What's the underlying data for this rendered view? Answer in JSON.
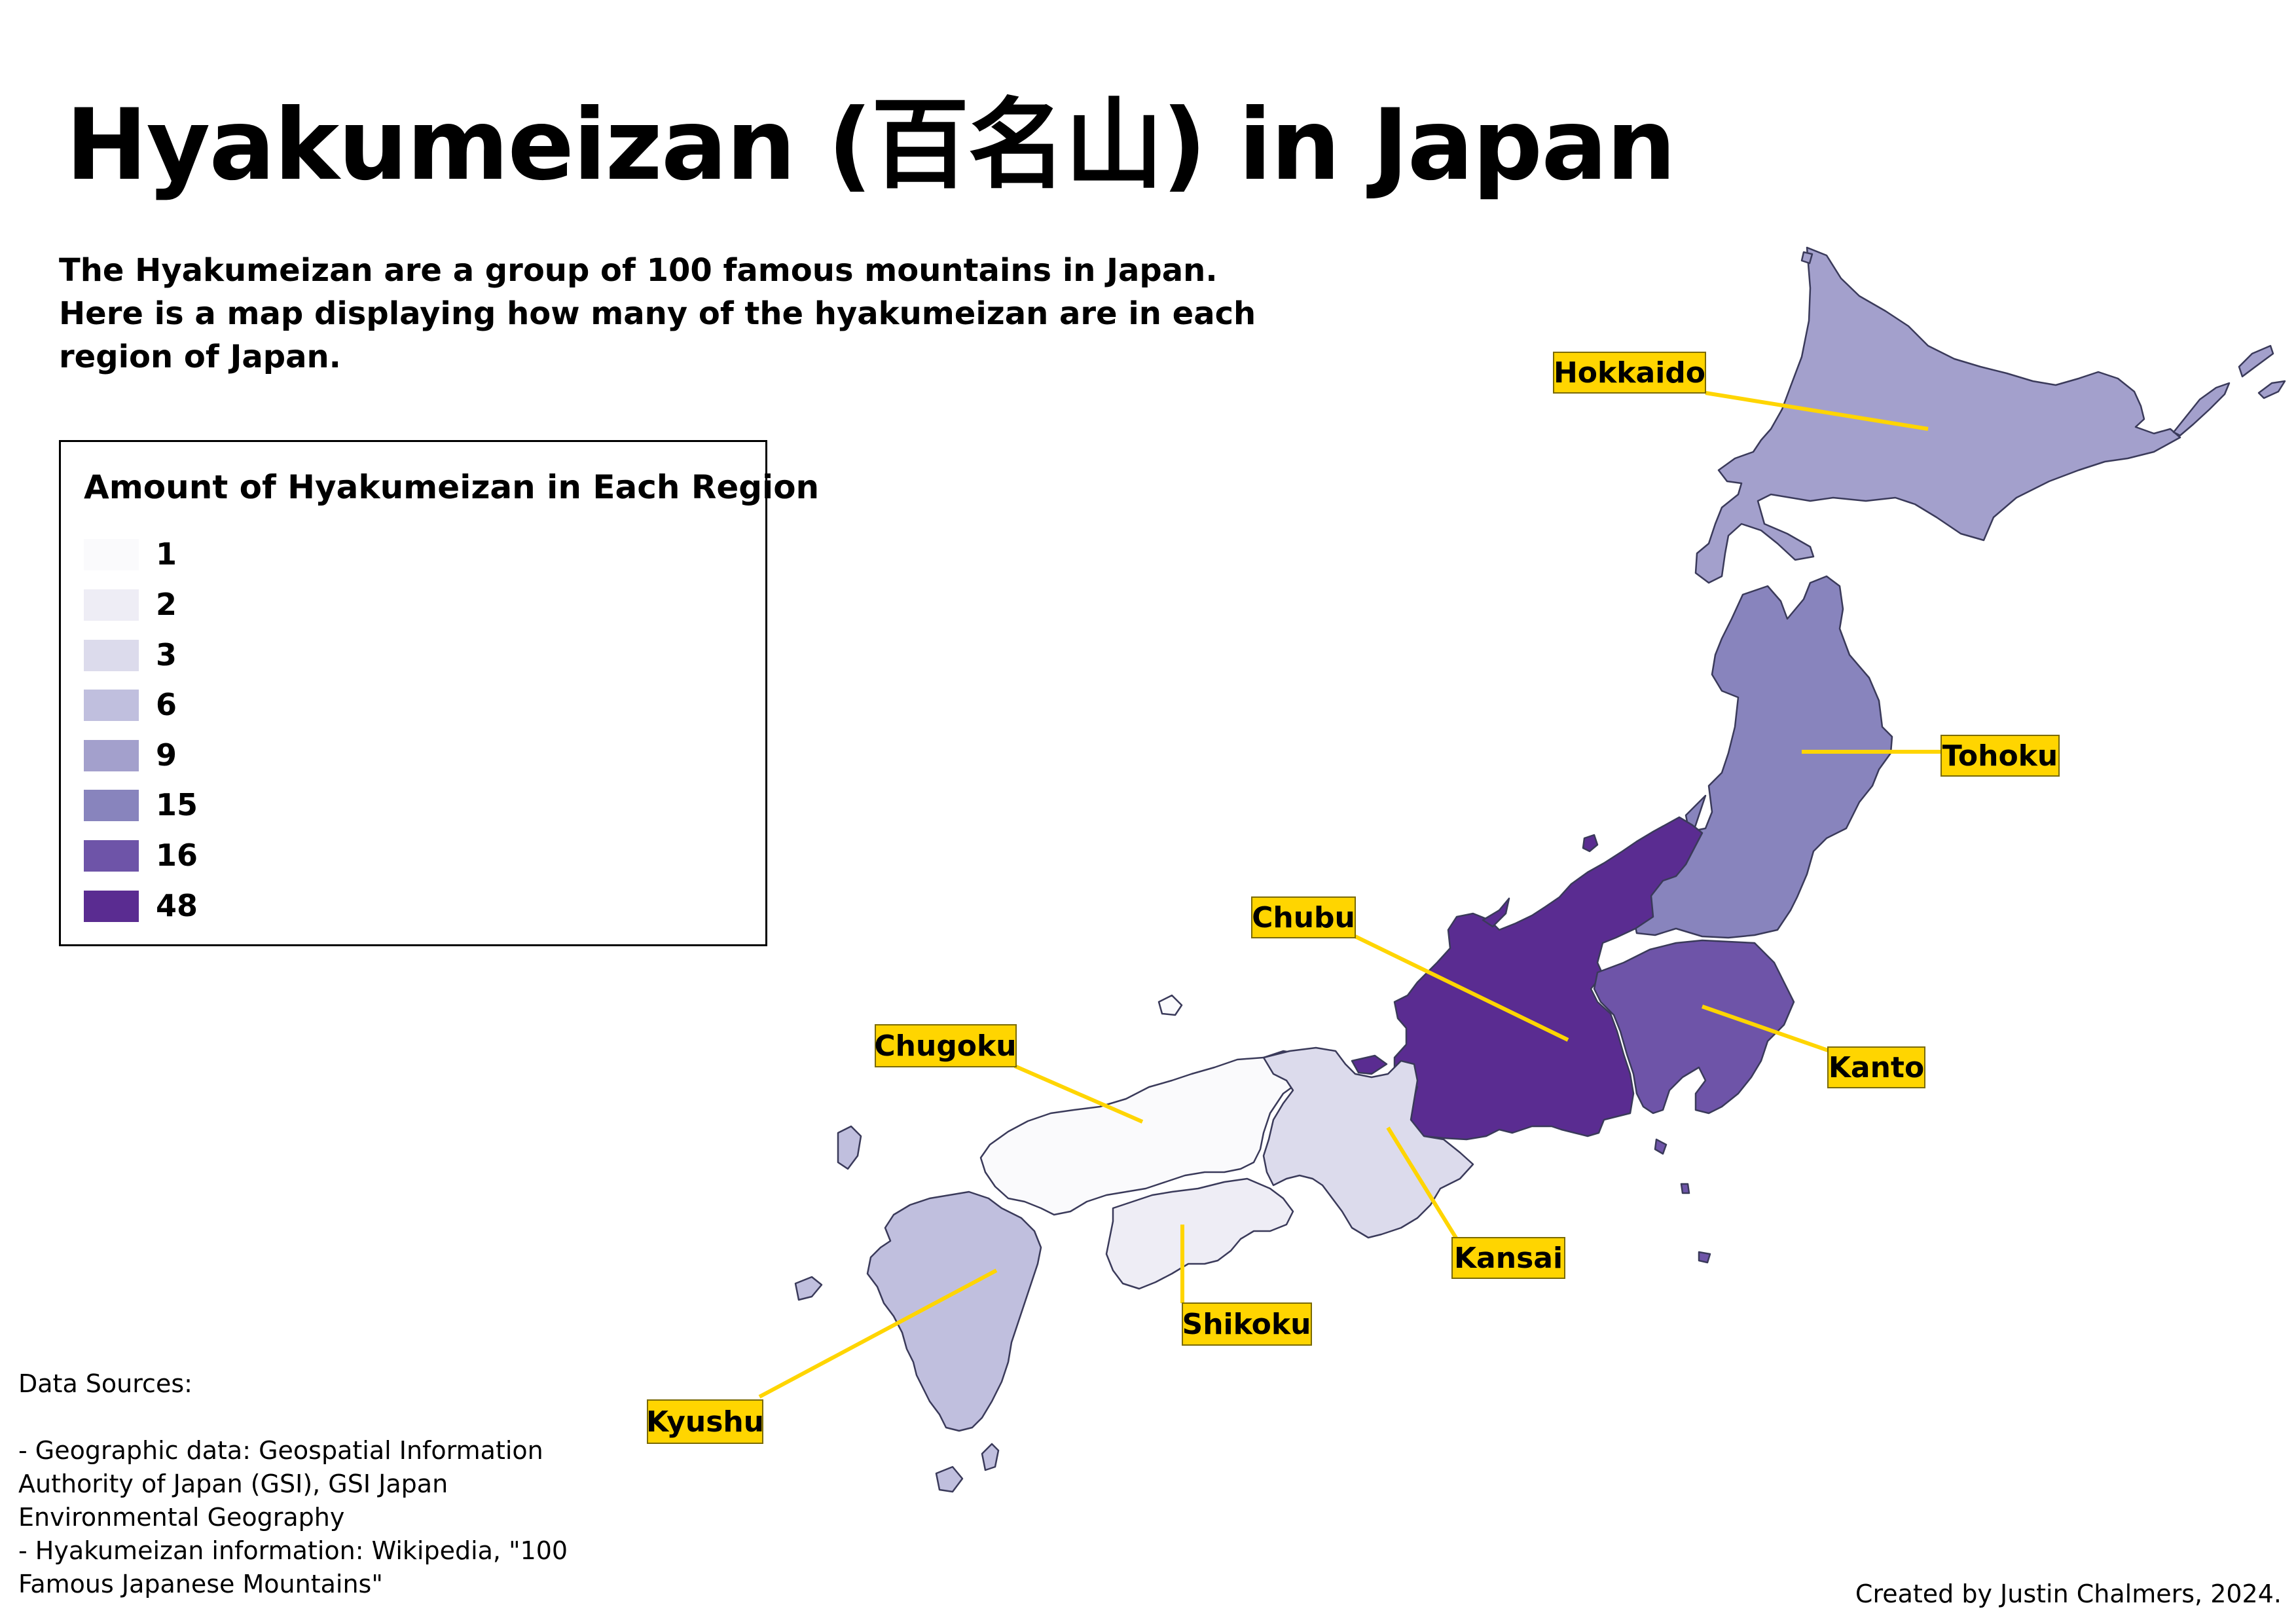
{
  "title": "Hyakumeizan (百名山) in Japan",
  "description": "The Hyakumeizan are a group of 100 famous mountains in Japan. Here is a map displaying how many of the hyakumeizan are in each region of Japan.",
  "legend": {
    "title": "Amount of Hyakumeizan in Each Region",
    "items": [
      {
        "value": "1",
        "color": "#FAFAFC"
      },
      {
        "value": "2",
        "color": "#EEEDF5"
      },
      {
        "value": "3",
        "color": "#DCDBEC"
      },
      {
        "value": "6",
        "color": "#C0BFDE"
      },
      {
        "value": "9",
        "color": "#A3A0CC"
      },
      {
        "value": "15",
        "color": "#8884BD"
      },
      {
        "value": "16",
        "color": "#6E54A8"
      },
      {
        "value": "48",
        "color": "#5A2C91"
      }
    ]
  },
  "regions": [
    {
      "name": "Hokkaido",
      "count": 9,
      "color": "#A3A0CC"
    },
    {
      "name": "Tohoku",
      "count": 15,
      "color": "#8884BD"
    },
    {
      "name": "Chubu",
      "count": 48,
      "color": "#5A2C91"
    },
    {
      "name": "Kanto",
      "count": 16,
      "color": "#6E54A8"
    },
    {
      "name": "Chugoku",
      "count": 1,
      "color": "#FAFAFC"
    },
    {
      "name": "Kansai",
      "count": 3,
      "color": "#DCDBEC"
    },
    {
      "name": "Shikoku",
      "count": 2,
      "color": "#EEEDF5"
    },
    {
      "name": "Kyushu",
      "count": 6,
      "color": "#C0BFDE"
    }
  ],
  "label_color": "#FFD500",
  "sources": {
    "heading": "Data Sources:",
    "lines": [
      "- Geographic data: Geospatial Information Authority of Japan (GSI), GSI Japan Environmental Geography",
      "- Hyakumeizan information: Wikipedia, \"100 Famous Japanese Mountains\""
    ]
  },
  "credit": "Created by Justin Chalmers, 2024."
}
